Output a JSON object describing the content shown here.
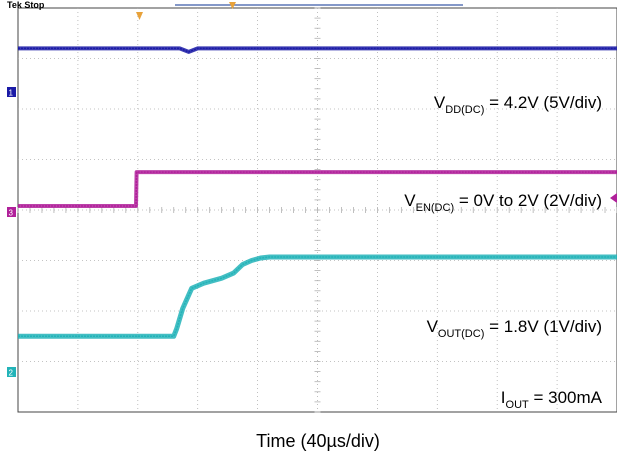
{
  "scope": {
    "status": "Tek Stop",
    "channel_markers": [
      "1",
      "3",
      "2"
    ]
  },
  "chart_data": {
    "type": "line",
    "xlabel": "Time (40µs/div)",
    "x_unit": "div",
    "y_unit": "div",
    "xlim": [
      0,
      10
    ],
    "ylim": [
      -4,
      4
    ],
    "grid": true,
    "colors": {
      "vdd": "#1a1aa6",
      "ven": "#b0209a",
      "vout": "#22b3b8",
      "grid": "#b0b0b0",
      "markers": "#e8a23a"
    },
    "series": [
      {
        "name": "VDD(DC) = 4.2V (5V/div)",
        "color": "#1a1aa6",
        "marker": "1",
        "x": [
          0,
          2.7,
          2.85,
          3.0,
          10
        ],
        "y": [
          3.2,
          3.2,
          3.13,
          3.2,
          3.2
        ]
      },
      {
        "name": "VEN(DC) = 0V to 2V (2V/div)",
        "color": "#b0209a",
        "marker": "3",
        "x": [
          0,
          1.97,
          1.98,
          10
        ],
        "y": [
          0.08,
          0.08,
          0.75,
          0.75
        ]
      },
      {
        "name": "VOUT(DC) = 1.8V (1V/div)",
        "color": "#22b3b8",
        "marker": "2",
        "x": [
          0,
          2.6,
          2.65,
          2.75,
          2.9,
          3.1,
          3.4,
          3.6,
          3.75,
          3.9,
          4.05,
          4.2,
          10
        ],
        "y": [
          -2.5,
          -2.5,
          -2.35,
          -1.95,
          -1.55,
          -1.45,
          -1.35,
          -1.25,
          -1.08,
          -1.0,
          -0.95,
          -0.93,
          -0.93
        ]
      }
    ],
    "labels": {
      "vdd": {
        "main": "V",
        "sub": "DD(DC)",
        "rest": " = 4.2V (5V/div)"
      },
      "ven": {
        "main": "V",
        "sub": "EN(DC)",
        "rest": " = 0V to 2V (2V/div)"
      },
      "vout": {
        "main": "V",
        "sub": "OUT(DC)",
        "rest": " = 1.8V (1V/div)"
      },
      "iout": {
        "main": "I",
        "sub": "OUT",
        "rest": " = 300mA"
      }
    }
  }
}
